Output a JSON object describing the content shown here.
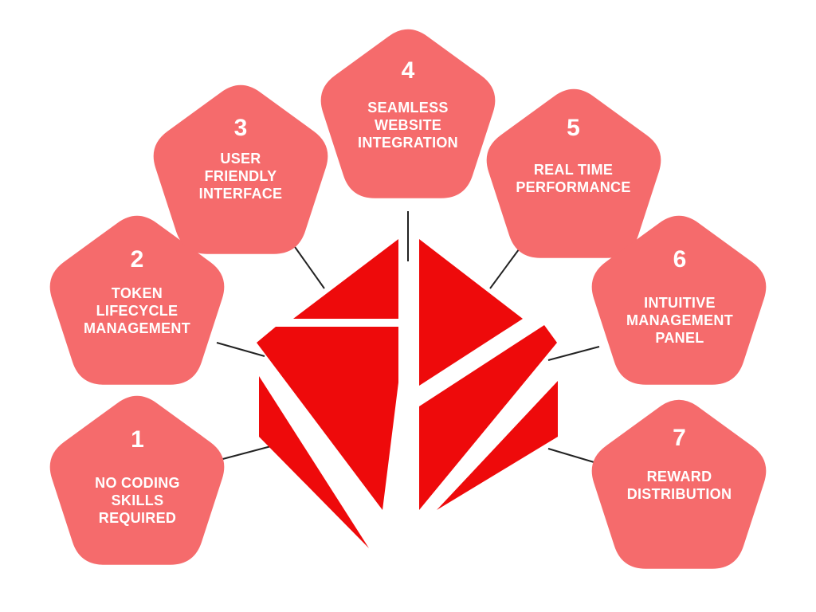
{
  "colors": {
    "pentagon_fill": "#f56b6c",
    "cube_fill": "#ee0a0b",
    "connector": "#222222",
    "label_text": "#ffffff",
    "background": "#ffffff"
  },
  "features": [
    {
      "number": "1",
      "label": "NO CODING\nSKILLS\nREQUIRED"
    },
    {
      "number": "2",
      "label": "TOKEN\nLIFECYCLE\nMANAGEMENT"
    },
    {
      "number": "3",
      "label": "USER\nFRIENDLY\nINTERFACE"
    },
    {
      "number": "4",
      "label": "SEAMLESS\nWEBSITE\nINTEGRATION"
    },
    {
      "number": "5",
      "label": "REAL TIME\nPERFORMANCE"
    },
    {
      "number": "6",
      "label": "INTUITIVE\nMANAGEMENT\nPANEL"
    },
    {
      "number": "7",
      "label": "REWARD\nDISTRIBUTION"
    }
  ]
}
